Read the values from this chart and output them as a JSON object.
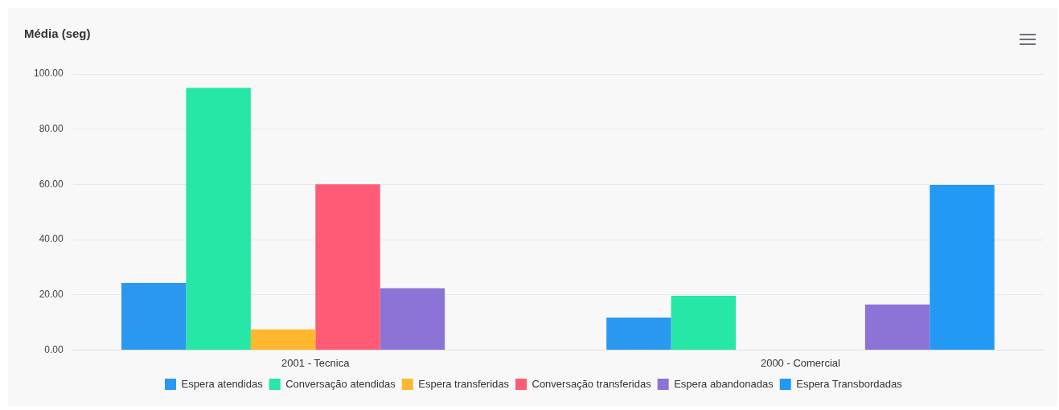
{
  "chart_data": {
    "type": "bar",
    "title": "Média (seg)",
    "categories": [
      "2001 - Tecnica",
      "2000 - Comercial"
    ],
    "series": [
      {
        "name": "Espera atendidas",
        "color": "#2b98f0",
        "values": [
          24.3,
          11.8
        ]
      },
      {
        "name": "Conversação atendidas",
        "color": "#26e7a5",
        "values": [
          95.0,
          19.6
        ]
      },
      {
        "name": "Espera transferidas",
        "color": "#feb72e",
        "values": [
          7.5,
          0
        ]
      },
      {
        "name": "Conversação transferidas",
        "color": "#ff5b77",
        "values": [
          60.0,
          0
        ]
      },
      {
        "name": "Espera abandonadas",
        "color": "#8b74d6",
        "values": [
          22.4,
          16.5
        ]
      },
      {
        "name": "Espera Transbordadas",
        "color": "#229af5",
        "values": [
          0,
          59.8
        ]
      }
    ],
    "ylim": [
      0,
      100
    ],
    "yticks": [
      {
        "value": 0,
        "label": "0.00"
      },
      {
        "value": 20,
        "label": "20.00"
      },
      {
        "value": 40,
        "label": "40.00"
      },
      {
        "value": 60,
        "label": "60.00"
      },
      {
        "value": 80,
        "label": "80.00"
      },
      {
        "value": 100,
        "label": "100.00"
      }
    ],
    "grid": "y",
    "legend": "bottom"
  }
}
